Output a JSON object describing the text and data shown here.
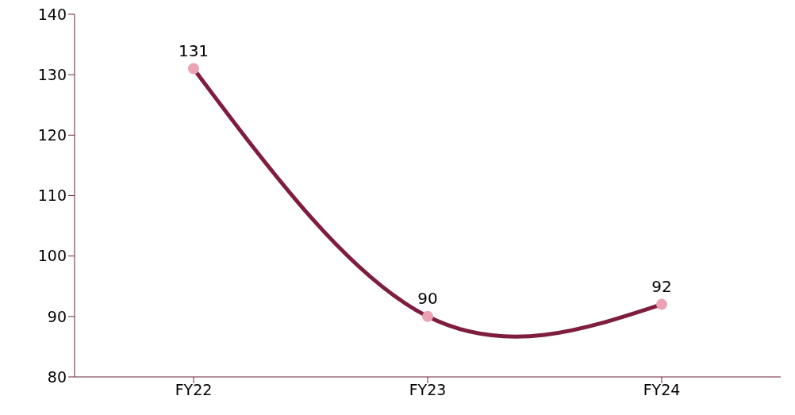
{
  "chart_data": {
    "type": "line",
    "categories": [
      "FY22",
      "FY23",
      "FY24"
    ],
    "series": [
      {
        "color": "#7f1d3c",
        "colors": [
          "#eba3b3",
          "#eba3b3",
          "#eba3b3"
        ],
        "values": [
          131,
          90,
          92
        ]
      }
    ],
    "ylim": [
      80,
      140
    ],
    "yticks": [
      80,
      90,
      100,
      110,
      120,
      130,
      140
    ],
    "marker": "circle",
    "line_style": "solid",
    "data_labels": true
  }
}
